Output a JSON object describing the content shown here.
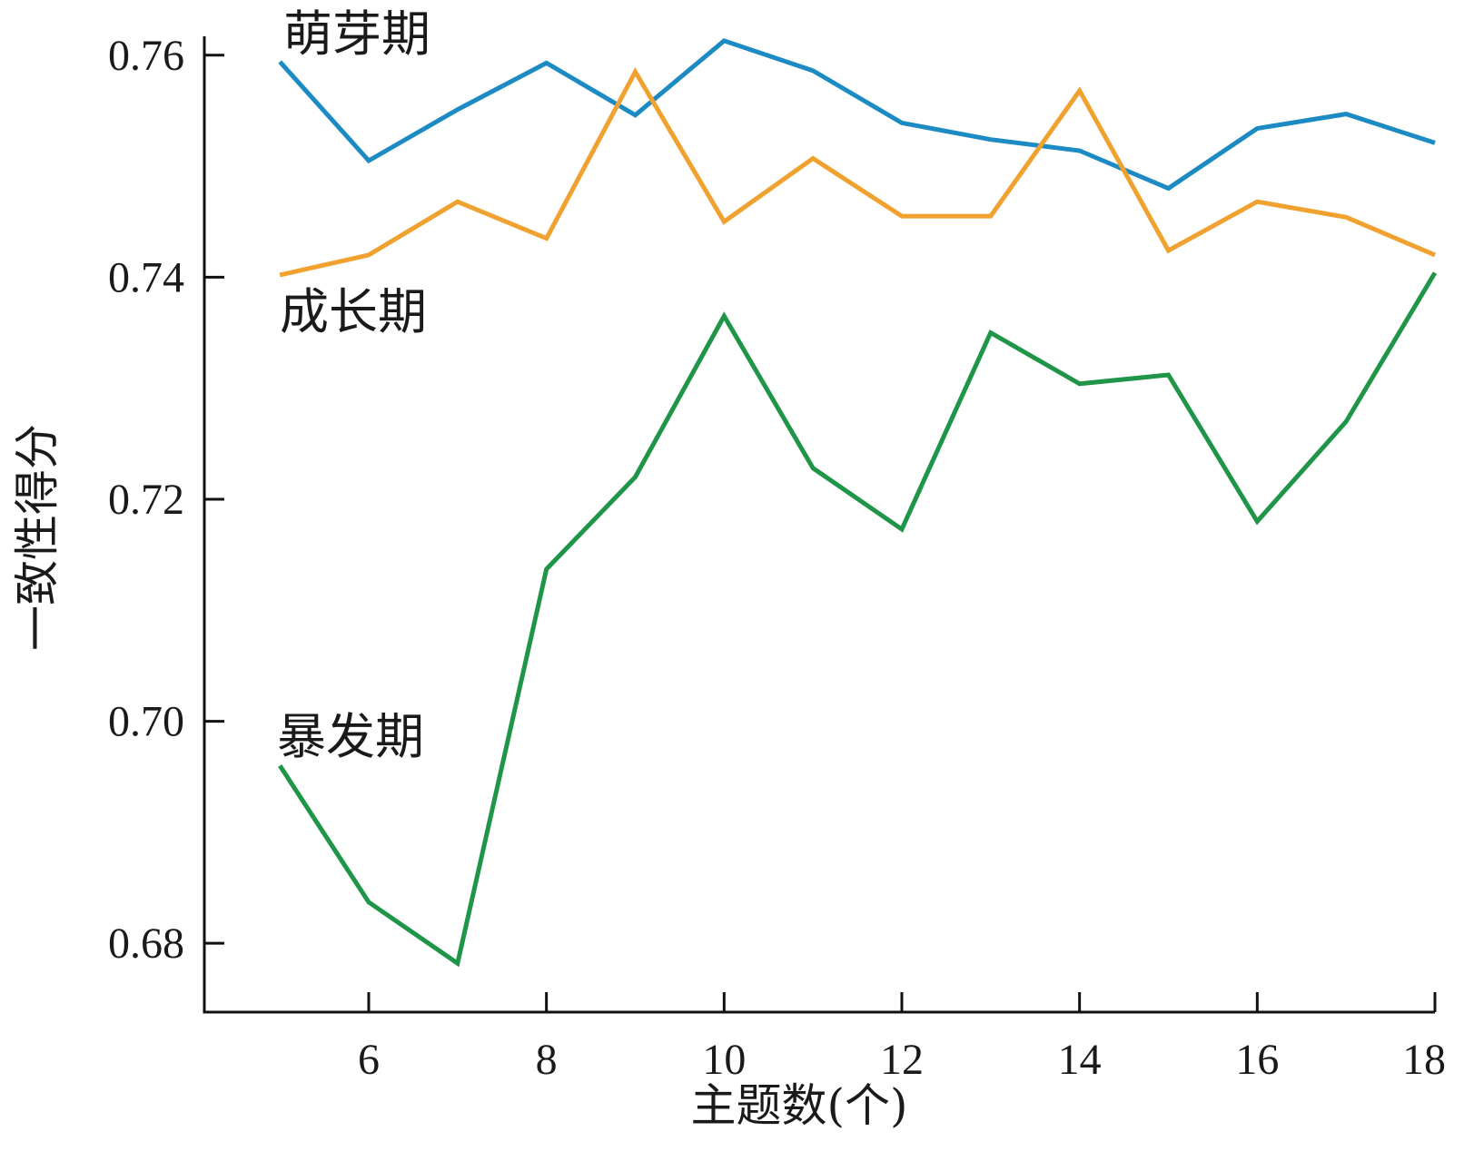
{
  "chart_data": {
    "type": "line",
    "title": "",
    "xlabel": "主题数(个)",
    "ylabel": "一致性得分",
    "xlim": [
      4.15,
      18
    ],
    "ylim": [
      0.6738,
      0.7617
    ],
    "x_ticks": [
      6,
      8,
      10,
      12,
      14,
      16,
      18
    ],
    "x_tick_labels": [
      "6",
      "8",
      "10",
      "12",
      "14",
      "16",
      "18"
    ],
    "y_ticks": [
      0.68,
      0.7,
      0.72,
      0.74,
      0.76
    ],
    "y_tick_labels": [
      "0.68",
      "0.70",
      "0.72",
      "0.74",
      "0.76"
    ],
    "grid": false,
    "legend": "inline labels",
    "x": [
      5,
      6,
      7,
      8,
      9,
      10,
      11,
      12,
      13,
      14,
      15,
      16,
      17,
      18
    ],
    "series": [
      {
        "name": "萌芽期",
        "color": "#1d8bc3",
        "values": [
          0.7594,
          0.7505,
          0.7551,
          0.7593,
          0.7546,
          0.7613,
          0.7586,
          0.7539,
          0.7524,
          0.7514,
          0.748,
          0.7534,
          0.7547,
          0.7521
        ]
      },
      {
        "name": "成长期",
        "color": "#f0a12f",
        "values": [
          0.7402,
          0.742,
          0.7468,
          0.7435,
          0.7585,
          0.745,
          0.7507,
          0.7455,
          0.7455,
          0.7568,
          0.7424,
          0.7468,
          0.7454,
          0.742
        ]
      },
      {
        "name": "暴发期",
        "color": "#1f9548",
        "values": [
          0.696,
          0.6837,
          0.6782,
          0.7137,
          0.722,
          0.7365,
          0.7228,
          0.7173,
          0.735,
          0.7304,
          0.7312,
          0.718,
          0.727,
          0.7404
        ]
      }
    ]
  }
}
